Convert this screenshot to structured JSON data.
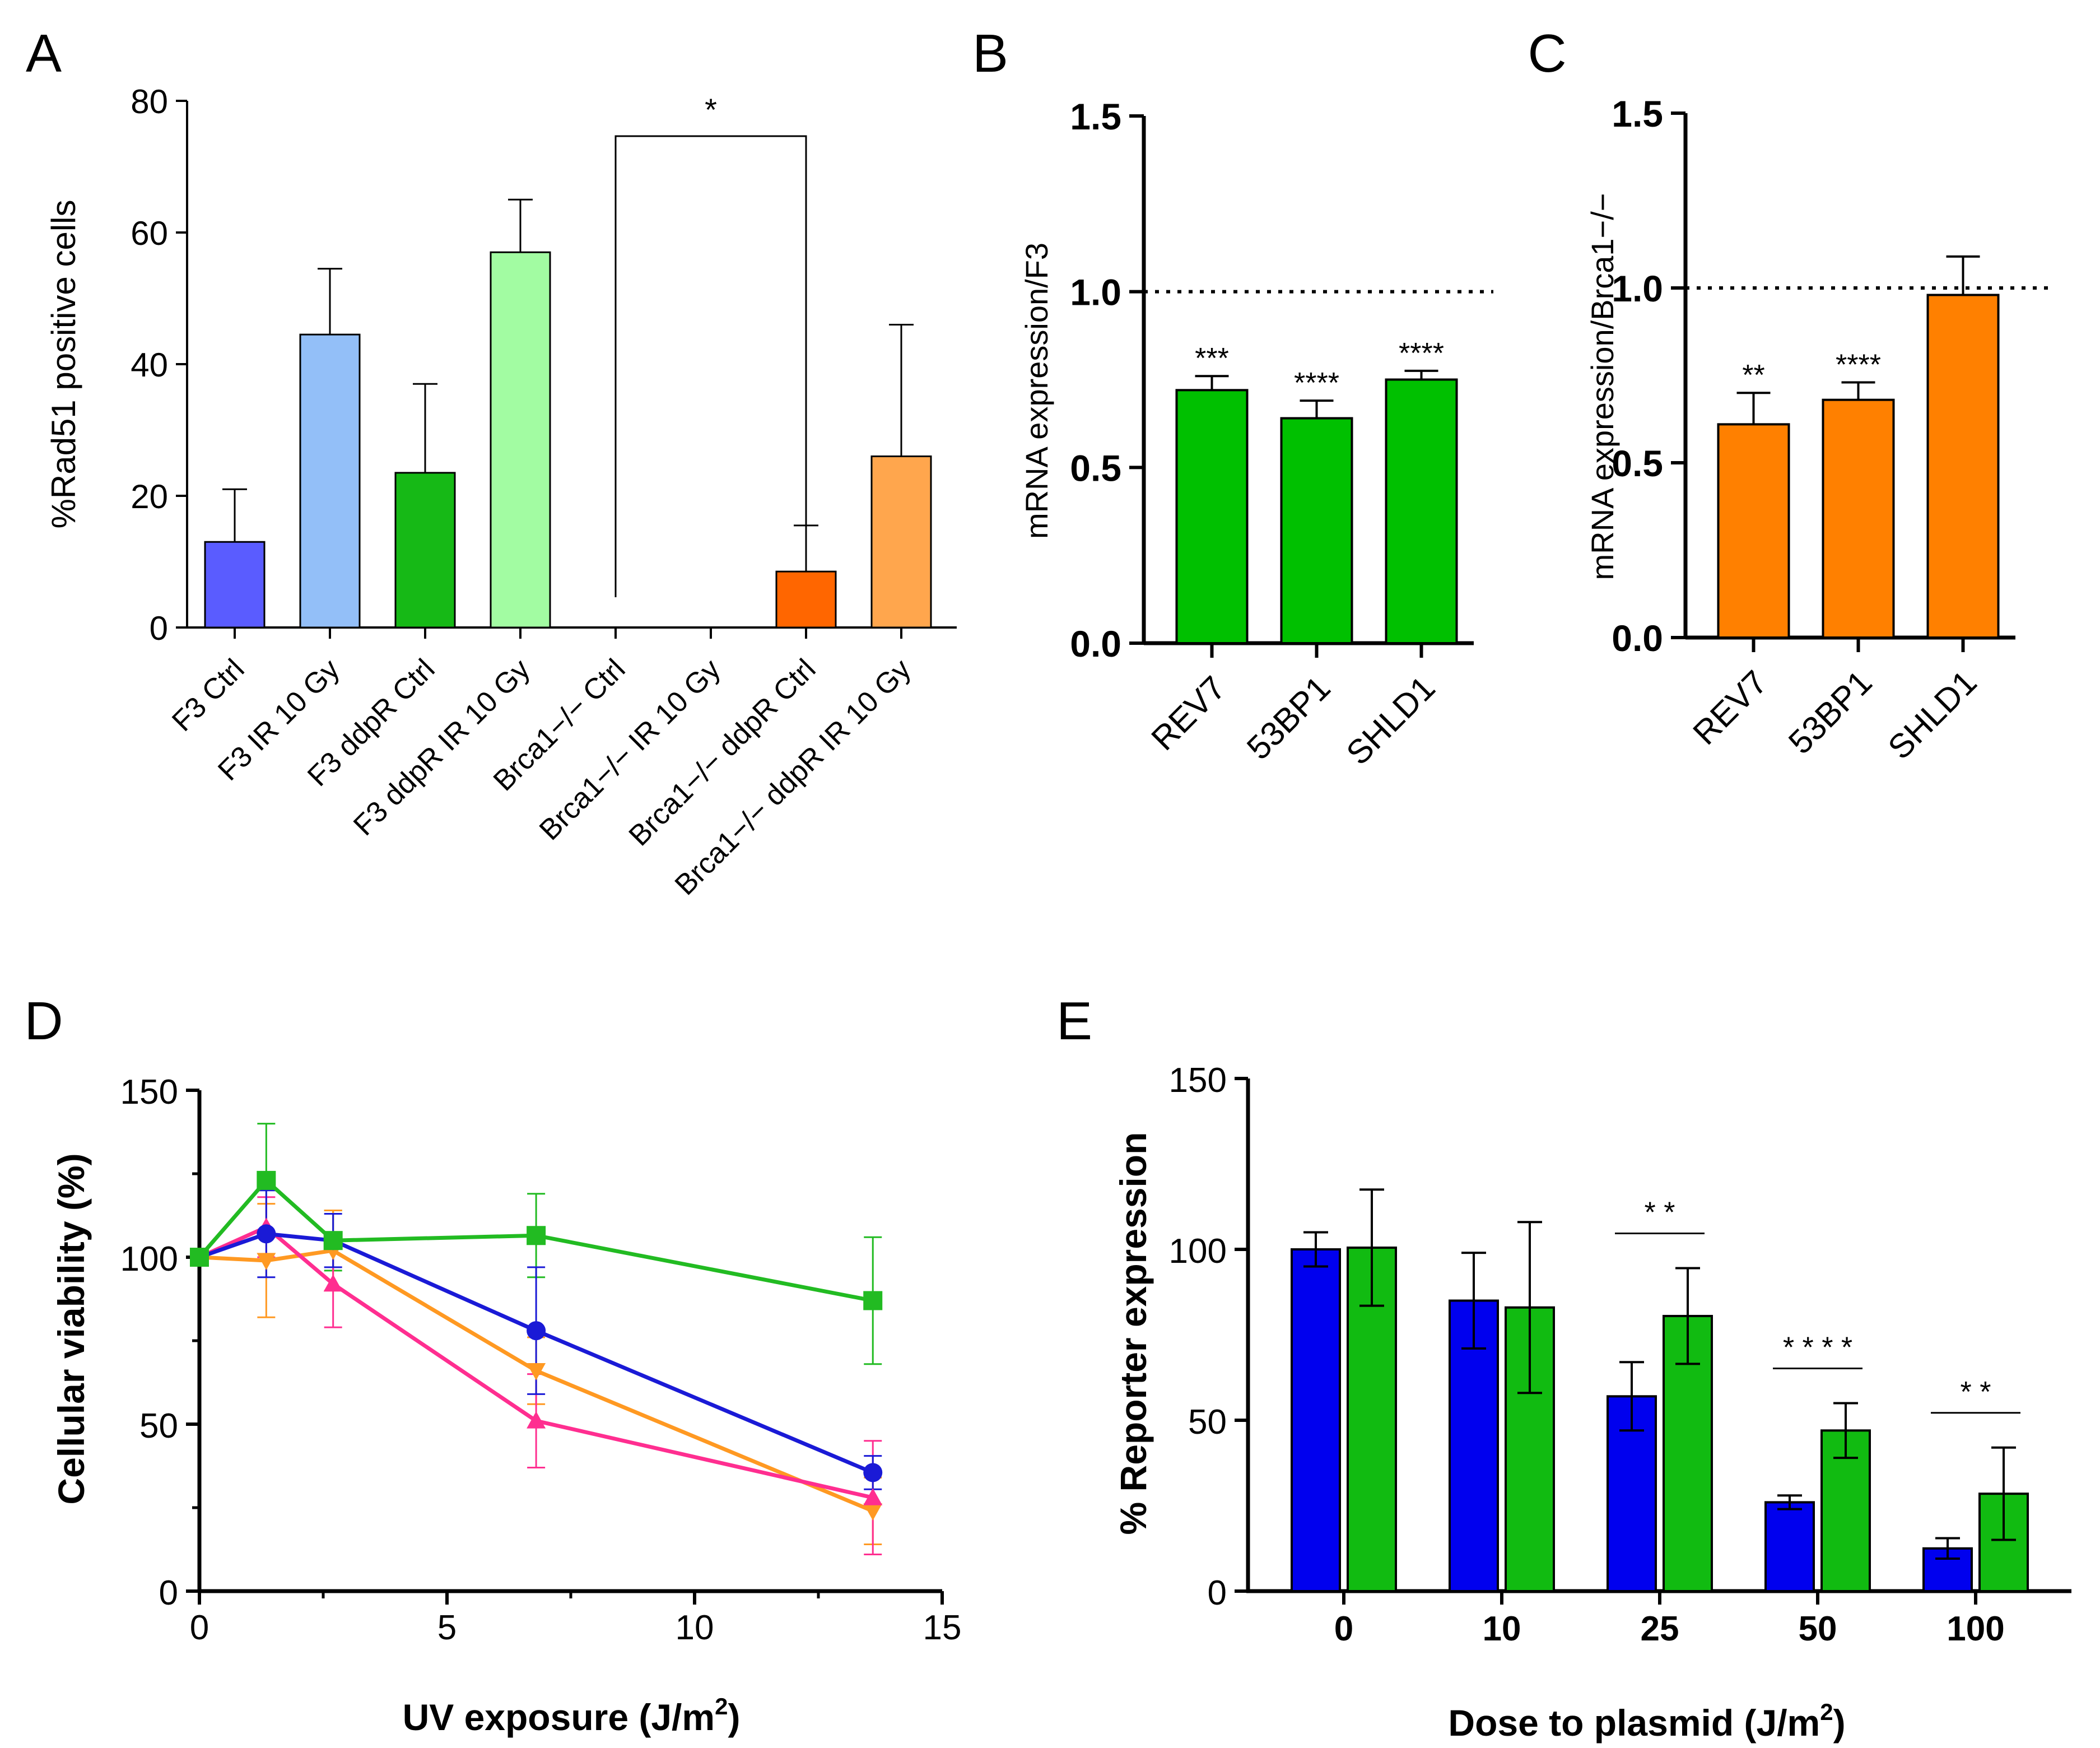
{
  "chart_data": [
    {
      "id": "A",
      "panel_label": "A",
      "type": "bar",
      "ylabel": "%Rad51 positive cells",
      "ylim": [
        0,
        80
      ],
      "yticks": [
        0,
        20,
        40,
        60,
        80
      ],
      "categories": [
        "F3 Ctrl",
        "F3 IR 10 Gy",
        "F3 ddpR Ctrl",
        "F3 ddpR IR 10 Gy",
        "Brca1−/− Ctrl",
        "Brca1−/− IR 10 Gy",
        "Brca1−/− ddpR Ctrl",
        "Brca1−/− ddpR IR 10 Gy"
      ],
      "values": [
        13,
        44.5,
        23.5,
        57,
        0,
        0,
        8.5,
        26
      ],
      "errors": [
        8,
        10,
        13.5,
        8,
        0,
        0,
        7,
        20
      ],
      "colors": [
        "#5a5cff",
        "#93bff8",
        "#16b916",
        "#a2fca2",
        "#5a5cff",
        "#5a5cff",
        "#ff6600",
        "#ffa64d"
      ],
      "significance": [
        {
          "from": 4,
          "to": 6,
          "label": "*"
        }
      ]
    },
    {
      "id": "B",
      "panel_label": "B",
      "type": "bar",
      "ylabel": "mRNA expression/F3",
      "ylim": [
        0,
        1.5
      ],
      "yticks": [
        "0.0",
        "0.5",
        "1.0",
        "1.5"
      ],
      "categories": [
        "REV7",
        "53BP1",
        "SHLD1"
      ],
      "values": [
        0.72,
        0.64,
        0.75
      ],
      "errors": [
        0.04,
        0.05,
        0.025
      ],
      "color": "#00c000",
      "reference_line": 1.0,
      "stars": [
        "***",
        "****",
        "****"
      ]
    },
    {
      "id": "C",
      "panel_label": "C",
      "type": "bar",
      "ylabel": "mRNA expression/Brca1−/−",
      "ylim": [
        0,
        1.5
      ],
      "yticks": [
        "0.0",
        "0.5",
        "1.0",
        "1.5"
      ],
      "categories": [
        "REV7",
        "53BP1",
        "SHLD1"
      ],
      "values": [
        0.61,
        0.68,
        0.98
      ],
      "errors": [
        0.09,
        0.05,
        0.11
      ],
      "color": "#ff8000",
      "reference_line": 1.0,
      "stars": [
        "**",
        "****",
        ""
      ]
    },
    {
      "id": "D",
      "panel_label": "D",
      "type": "line",
      "xlabel": "UV exposure (J/m",
      "xlabel_sup": "2",
      "xlabel_end": ")",
      "ylabel": "Cellular viability (%)",
      "xlim": [
        0,
        15
      ],
      "ylim": [
        0,
        150
      ],
      "xticks": [
        0,
        5,
        10,
        15
      ],
      "yticks": [
        0,
        50,
        100,
        150
      ],
      "x": [
        0,
        1.35,
        2.7,
        6.8,
        13.6
      ],
      "series": [
        {
          "name": "green",
          "color": "#22bb22",
          "marker": "square",
          "values": [
            100,
            123,
            105,
            106.5,
            87
          ],
          "errors": [
            0,
            17,
            9,
            12.5,
            19
          ]
        },
        {
          "name": "orange",
          "color": "#ff9922",
          "marker": "triangle-down",
          "values": [
            100,
            99,
            102,
            66,
            24
          ],
          "errors": [
            0,
            17,
            12,
            10,
            10
          ]
        },
        {
          "name": "pink",
          "color": "#ff2e90",
          "marker": "triangle-up",
          "values": [
            100,
            109,
            92,
            51,
            28
          ],
          "errors": [
            0,
            9,
            13,
            14,
            17
          ]
        },
        {
          "name": "blue",
          "color": "#1a1ad6",
          "marker": "circle",
          "values": [
            100,
            107,
            105,
            78,
            35.5
          ],
          "errors": [
            0,
            13,
            8,
            19,
            5
          ]
        }
      ]
    },
    {
      "id": "E",
      "panel_label": "E",
      "type": "bar",
      "xlabel": "Dose to plasmid (J/m",
      "xlabel_sup": "2",
      "xlabel_end": ")",
      "ylabel": "% Reporter expression",
      "ylim": [
        0,
        150
      ],
      "yticks": [
        0,
        50,
        100,
        150
      ],
      "categories": [
        "0",
        "10",
        "25",
        "50",
        "100"
      ],
      "series": [
        {
          "name": "blue",
          "color": "#0000ee",
          "values": [
            100,
            85,
            57,
            26,
            12.5
          ],
          "errors": [
            5,
            14,
            10,
            2,
            3
          ]
        },
        {
          "name": "green",
          "color": "#11bb11",
          "values": [
            100.5,
            83,
            80.5,
            47,
            28.5
          ],
          "errors": [
            17,
            25,
            14,
            8,
            13.5
          ]
        }
      ],
      "significance": [
        {
          "category": 2,
          "label": "* *"
        },
        {
          "category": 3,
          "label": "* * * *"
        },
        {
          "category": 4,
          "label": "* *"
        }
      ]
    }
  ]
}
